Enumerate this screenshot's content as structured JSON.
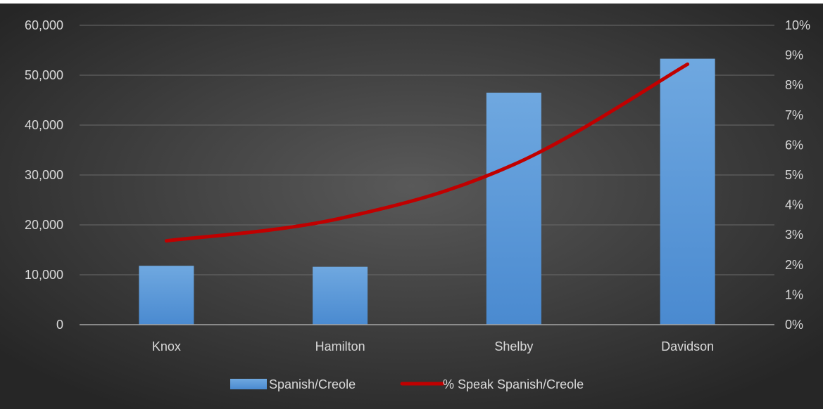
{
  "chart_data": {
    "type": "bar",
    "categories": [
      "Knox",
      "Hamilton",
      "Shelby",
      "Davidson"
    ],
    "series": [
      {
        "name": "Spanish/Creole",
        "type": "bar",
        "axis": "left",
        "values": [
          11800,
          11600,
          46500,
          53300
        ],
        "color": "#5b9bd5"
      },
      {
        "name": "% Speak Spanish/Creole",
        "type": "line",
        "axis": "right",
        "values": [
          0.028,
          0.0355,
          0.0535,
          0.087
        ],
        "color": "#c00000"
      }
    ],
    "ylim_left": [
      0,
      60000
    ],
    "yticks_left": [
      "0",
      "10,000",
      "20,000",
      "30,000",
      "40,000",
      "50,000",
      "60,000"
    ],
    "ylim_right": [
      0,
      0.1
    ],
    "yticks_right": [
      "0%",
      "1%",
      "2%",
      "3%",
      "4%",
      "5%",
      "6%",
      "7%",
      "8%",
      "9%",
      "10%"
    ],
    "grid": true,
    "legend": "bottom",
    "title": "",
    "xlabel": "",
    "ylabel": ""
  }
}
